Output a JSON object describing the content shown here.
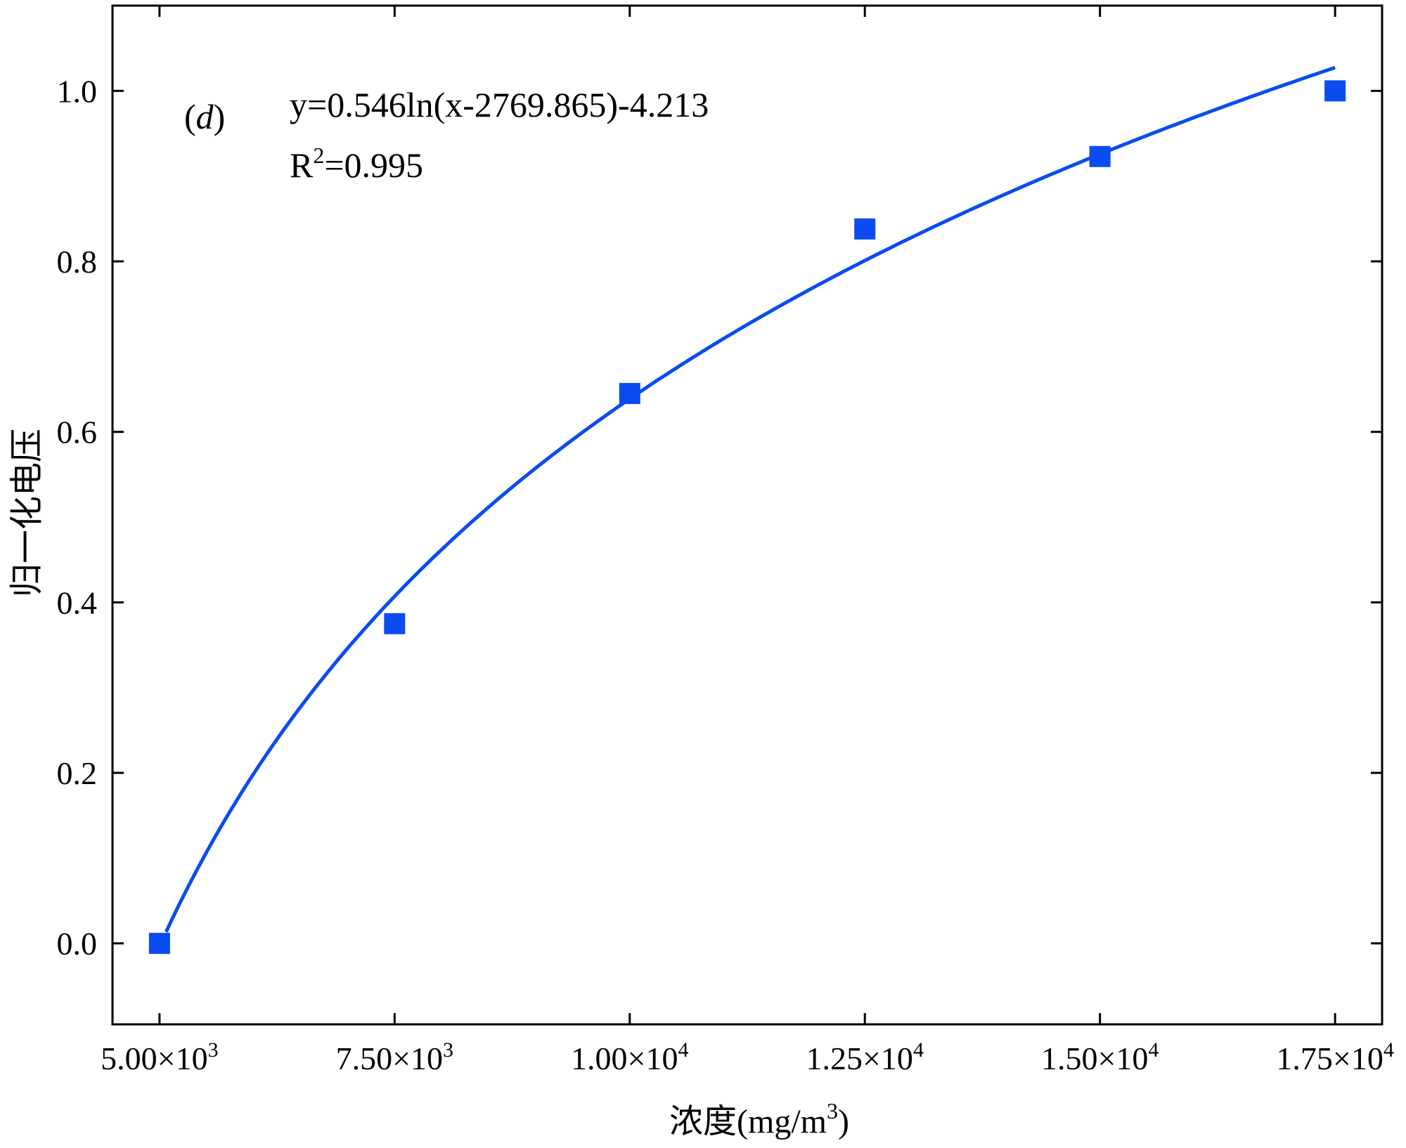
{
  "chart_data": {
    "type": "scatter",
    "panel_label": {
      "open": "(",
      "letter": "d",
      "close": ")"
    },
    "annotations": {
      "equation": "y=0.546ln(x-2769.865)-4.213",
      "r2_base": "R",
      "r2_exp": "2",
      "r2_value": "=0.995"
    },
    "xlabel": {
      "text": "浓度(mg/m",
      "exp": "3",
      "close": ")"
    },
    "ylabel": "归一化电压",
    "xlim": [
      4500,
      18000
    ],
    "ylim": [
      -0.095,
      1.1
    ],
    "x_ticks": [
      {
        "value": 5000,
        "mantissa": "5.00×10",
        "exp": "3"
      },
      {
        "value": 7500,
        "mantissa": "7.50×10",
        "exp": "3"
      },
      {
        "value": 10000,
        "mantissa": "1.00×10",
        "exp": "4"
      },
      {
        "value": 12500,
        "mantissa": "1.25×10",
        "exp": "4"
      },
      {
        "value": 15000,
        "mantissa": "1.50×10",
        "exp": "4"
      },
      {
        "value": 17500,
        "mantissa": "1.75×10",
        "exp": "4"
      }
    ],
    "y_ticks": [
      {
        "value": 0.0,
        "label": "0.0"
      },
      {
        "value": 0.2,
        "label": "0.2"
      },
      {
        "value": 0.4,
        "label": "0.4"
      },
      {
        "value": 0.6,
        "label": "0.6"
      },
      {
        "value": 0.8,
        "label": "0.8"
      },
      {
        "value": 1.0,
        "label": "1.0"
      }
    ],
    "series": [
      {
        "kind": "scatter",
        "marker": "square",
        "color": "#0a4cf0",
        "points": [
          {
            "x": 5000,
            "y": 0.0
          },
          {
            "x": 7500,
            "y": 0.375
          },
          {
            "x": 10000,
            "y": 0.645
          },
          {
            "x": 12500,
            "y": 0.838
          },
          {
            "x": 15000,
            "y": 0.923
          },
          {
            "x": 17500,
            "y": 1.0
          }
        ]
      },
      {
        "kind": "line",
        "color": "#0a4cf0",
        "fit": {
          "a": 0.546,
          "c": 2769.865,
          "b": -4.213,
          "x_from": 5070,
          "x_to": 17500
        }
      }
    ],
    "grid": false,
    "legend": "none"
  }
}
